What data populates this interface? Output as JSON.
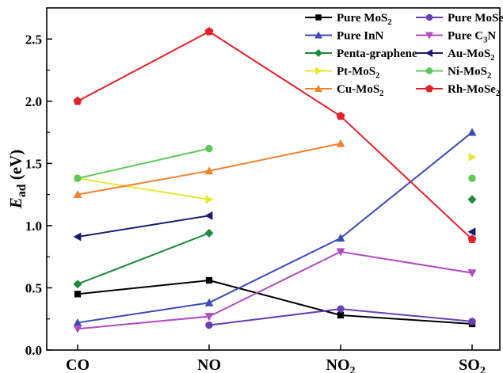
{
  "chart_data": {
    "type": "line",
    "categories": [
      "CO",
      "NO",
      "NO2",
      "SO2"
    ],
    "category_display": [
      {
        "base": "CO",
        "sub": ""
      },
      {
        "base": "NO",
        "sub": ""
      },
      {
        "base": "NO",
        "sub": "2"
      },
      {
        "base": "SO",
        "sub": "2"
      }
    ],
    "ylabel": {
      "base": "E",
      "sub": "ad",
      "unit": " (eV)"
    },
    "ylim": [
      0,
      2.75
    ],
    "yticks": [
      "0.0",
      "0.5",
      "1.0",
      "1.5",
      "2.0",
      "2.5"
    ],
    "legend_position": "top-right",
    "series": [
      {
        "name": "Pure MoS",
        "name_sub": "2",
        "color": "#000000",
        "marker": "square",
        "values": [
          0.45,
          0.56,
          0.28,
          0.21
        ]
      },
      {
        "name": "Pure MoSe",
        "name_sub": "2",
        "color": "#6a3fb2",
        "marker": "circle",
        "values": [
          null,
          0.2,
          0.33,
          0.23
        ]
      },
      {
        "name": "Pure InN",
        "name_sub": "",
        "color": "#3a4bb2",
        "marker": "triangle-up",
        "values": [
          0.22,
          0.38,
          0.9,
          1.75
        ]
      },
      {
        "name": "Pure C",
        "name_sub": "3",
        "name_suffix": "N",
        "color": "#b04bc0",
        "marker": "triangle-down",
        "values": [
          0.17,
          0.27,
          0.79,
          0.62
        ]
      },
      {
        "name": "Penta-graphene",
        "name_sub": "",
        "color": "#1d8a3a",
        "marker": "diamond",
        "values": [
          0.53,
          0.94,
          null,
          1.21
        ]
      },
      {
        "name": "Au-MoS",
        "name_sub": "2",
        "color": "#1b1b6e",
        "marker": "triangle-left",
        "values": [
          0.91,
          1.08,
          null,
          0.95
        ]
      },
      {
        "name": "Pt-MoS",
        "name_sub": "2",
        "color": "#e8e832",
        "marker": "triangle-right",
        "values": [
          1.38,
          1.21,
          null,
          1.55
        ]
      },
      {
        "name": "Ni-MoS",
        "name_sub": "2",
        "color": "#5ec95a",
        "marker": "circle",
        "values": [
          1.38,
          1.62,
          null,
          1.38
        ]
      },
      {
        "name": "Cu-MoS",
        "name_sub": "2",
        "color": "#f0832e",
        "marker": "triangle-up",
        "values": [
          1.25,
          1.44,
          1.66,
          null
        ]
      },
      {
        "name": "Rh-MoSe",
        "name_sub": "2",
        "color": "#e2202a",
        "marker": "pentagon",
        "highlight": true,
        "values": [
          2.0,
          2.56,
          1.88,
          0.89
        ]
      }
    ]
  }
}
